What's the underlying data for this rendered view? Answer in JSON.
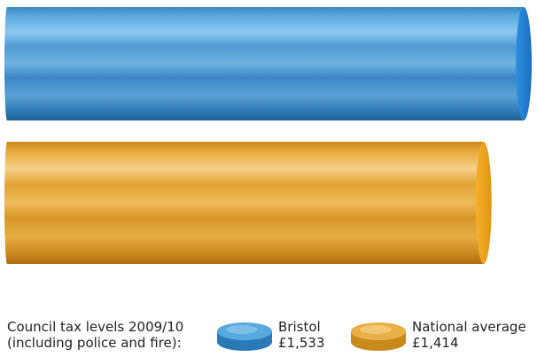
{
  "chart_data": {
    "type": "bar",
    "orientation": "horizontal",
    "title": "Council tax levels 2009/10 (including police and fire):",
    "title_lines": [
      "Council tax levels 2009/10",
      "(including police and fire):"
    ],
    "unit": "£",
    "categories": [
      "Bristol",
      "National average"
    ],
    "values": [
      1533,
      1414
    ],
    "value_labels": [
      "£1,533",
      "£1,414"
    ],
    "colors": [
      "#3f94cf",
      "#e8a221"
    ],
    "xlim": [
      0,
      1533
    ],
    "grid": false,
    "legend_position": "bottom"
  }
}
